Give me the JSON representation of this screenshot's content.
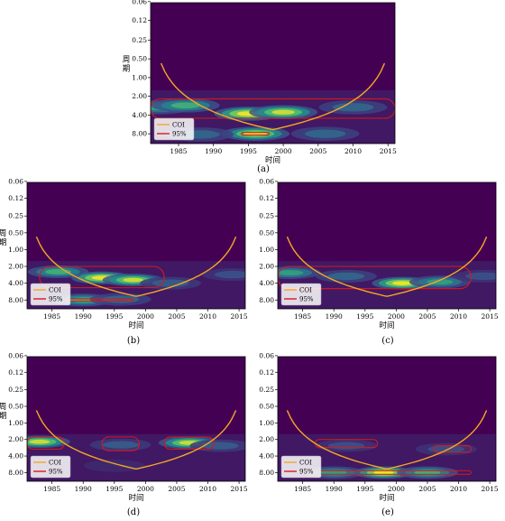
{
  "chart_data": [
    {
      "panel_label": "(a)",
      "type": "heatmap",
      "xlabel": "时间",
      "ylabel": "周期",
      "x_ticks": [
        "1985",
        "1990",
        "1995",
        "2000",
        "2005",
        "2010",
        "2015"
      ],
      "y_ticks": [
        "0.06",
        "0.12",
        "0.25",
        "0.50",
        "1.00",
        "2.00",
        "4.00",
        "8.00"
      ],
      "x_range": [
        1981,
        2016
      ],
      "y_scale": "log2",
      "y_range": [
        0.0625,
        11.5
      ],
      "y_inverted": true,
      "legend": {
        "position": "bottom-left",
        "entries": [
          {
            "label": "COI",
            "color": "#F5A623"
          },
          {
            "label": "95%",
            "color": "#D7191C"
          }
        ]
      },
      "power_hotspots": [
        {
          "year": 1982,
          "period": 3.0,
          "level": 0.7
        },
        {
          "year": 1986,
          "period": 2.8,
          "level": 0.8
        },
        {
          "year": 1995,
          "period": 3.8,
          "level": 1.0
        },
        {
          "year": 2000,
          "period": 3.6,
          "level": 0.9
        },
        {
          "year": 2010,
          "period": 3.0,
          "level": 0.6
        },
        {
          "year": 1996,
          "period": 8.0,
          "level": 0.9
        },
        {
          "year": 1988,
          "period": 8.2,
          "level": 0.6
        },
        {
          "year": 2006,
          "period": 8.0,
          "level": 0.6
        }
      ],
      "significant_regions": [
        {
          "x": [
            1981,
            2016
          ],
          "period": [
            2.2,
            4.5
          ]
        },
        {
          "x": [
            1994,
            1998
          ],
          "period": [
            7.6,
            8.4
          ]
        }
      ]
    },
    {
      "panel_label": "(b)",
      "type": "heatmap",
      "xlabel": "时间",
      "ylabel": "周期",
      "x_ticks": [
        "1985",
        "1990",
        "1995",
        "2000",
        "2005",
        "2010",
        "2015"
      ],
      "y_ticks": [
        "0.06",
        "0.12",
        "0.25",
        "0.50",
        "1.00",
        "2.00",
        "4.00",
        "8.00"
      ],
      "x_range": [
        1981,
        2016
      ],
      "y_scale": "log2",
      "y_range": [
        0.0625,
        11.5
      ],
      "y_inverted": true,
      "legend": {
        "position": "bottom-left",
        "entries": [
          {
            "label": "COI",
            "color": "#F5A623"
          },
          {
            "label": "95%",
            "color": "#D7191C"
          }
        ]
      },
      "power_hotspots": [
        {
          "year": 1986,
          "period": 2.5,
          "level": 0.8
        },
        {
          "year": 1993,
          "period": 3.2,
          "level": 1.0
        },
        {
          "year": 1998,
          "period": 3.5,
          "level": 0.9
        },
        {
          "year": 2004,
          "period": 4.0,
          "level": 0.5
        },
        {
          "year": 1990,
          "period": 8.0,
          "level": 0.8
        },
        {
          "year": 1996,
          "period": 7.8,
          "level": 0.6
        },
        {
          "year": 2014,
          "period": 2.8,
          "level": 0.4
        }
      ],
      "significant_regions": [
        {
          "x": [
            1983,
            2003
          ],
          "period": [
            2.0,
            4.8
          ]
        },
        {
          "x": [
            1987,
            1998
          ],
          "period": [
            7.6,
            8.4
          ]
        }
      ]
    },
    {
      "panel_label": "(c)",
      "type": "heatmap",
      "xlabel": "时间",
      "ylabel": "",
      "x_ticks": [
        "1985",
        "1990",
        "1995",
        "2000",
        "2005",
        "2010",
        "2015"
      ],
      "y_ticks": [
        "0.06",
        "0.12",
        "0.25",
        "0.50",
        "1.00",
        "2.00",
        "4.00",
        "8.00"
      ],
      "x_range": [
        1981,
        2016
      ],
      "y_scale": "log2",
      "y_range": [
        0.0625,
        11.5
      ],
      "y_inverted": true,
      "legend": {
        "position": "bottom-left",
        "entries": [
          {
            "label": "COI",
            "color": "#F5A623"
          },
          {
            "label": "95%",
            "color": "#D7191C"
          }
        ]
      },
      "power_hotspots": [
        {
          "year": 1983,
          "period": 2.6,
          "level": 0.7
        },
        {
          "year": 1992,
          "period": 3.0,
          "level": 0.6
        },
        {
          "year": 2001,
          "period": 4.0,
          "level": 1.0
        },
        {
          "year": 2007,
          "period": 3.8,
          "level": 0.7
        },
        {
          "year": 2014,
          "period": 3.0,
          "level": 0.4
        }
      ],
      "significant_regions": [
        {
          "x": [
            1981,
            2012
          ],
          "period": [
            2.0,
            5.0
          ]
        }
      ]
    },
    {
      "panel_label": "(d)",
      "type": "heatmap",
      "xlabel": "时间",
      "ylabel": "周期",
      "x_ticks": [
        "1985",
        "1990",
        "1995",
        "2000",
        "2005",
        "2010",
        "2015"
      ],
      "y_ticks": [
        "0.06",
        "0.12",
        "0.25",
        "0.50",
        "1.00",
        "2.00",
        "4.00",
        "8.00"
      ],
      "x_range": [
        1981,
        2016
      ],
      "y_scale": "log2",
      "y_range": [
        0.0625,
        11.5
      ],
      "y_inverted": true,
      "legend": {
        "position": "bottom-left",
        "entries": [
          {
            "label": "COI",
            "color": "#F5A623"
          },
          {
            "label": "95%",
            "color": "#D7191C"
          }
        ]
      },
      "power_hotspots": [
        {
          "year": 1983,
          "period": 2.2,
          "level": 0.9
        },
        {
          "year": 1996,
          "period": 2.5,
          "level": 0.5
        },
        {
          "year": 2007,
          "period": 2.3,
          "level": 0.9
        },
        {
          "year": 2012,
          "period": 2.6,
          "level": 0.5
        },
        {
          "year": 1995,
          "period": 6.0,
          "level": 0.3
        }
      ],
      "significant_regions": [
        {
          "x": [
            1981,
            1987
          ],
          "period": [
            1.8,
            3.0
          ]
        },
        {
          "x": [
            1993,
            1999
          ],
          "period": [
            1.8,
            3.2
          ]
        },
        {
          "x": [
            2003,
            2011
          ],
          "period": [
            1.8,
            3.0
          ]
        }
      ]
    },
    {
      "panel_label": "(e)",
      "type": "heatmap",
      "xlabel": "时间",
      "ylabel": "",
      "x_ticks": [
        "1985",
        "1990",
        "1995",
        "2000",
        "2005",
        "2010",
        "2015"
      ],
      "y_ticks": [
        "0.06",
        "0.12",
        "0.25",
        "0.50",
        "1.00",
        "2.00",
        "4.00",
        "8.00"
      ],
      "x_range": [
        1981,
        2016
      ],
      "y_scale": "log2",
      "y_range": [
        0.0625,
        11.5
      ],
      "y_inverted": true,
      "legend": {
        "position": "bottom-left",
        "entries": [
          {
            "label": "COI",
            "color": "#F5A623"
          },
          {
            "label": "95%",
            "color": "#D7191C"
          }
        ]
      },
      "power_hotspots": [
        {
          "year": 1990,
          "period": 8.0,
          "level": 0.7
        },
        {
          "year": 1998,
          "period": 8.0,
          "level": 1.0
        },
        {
          "year": 2005,
          "period": 8.0,
          "level": 0.8
        },
        {
          "year": 1992,
          "period": 2.6,
          "level": 0.4
        },
        {
          "year": 2008,
          "period": 3.0,
          "level": 0.4
        }
      ],
      "significant_regions": [
        {
          "x": [
            1985,
            2012
          ],
          "period": [
            7.4,
            8.6
          ]
        },
        {
          "x": [
            1987,
            1997
          ],
          "period": [
            2.0,
            2.8
          ]
        },
        {
          "x": [
            2006,
            2012
          ],
          "period": [
            2.6,
            3.4
          ]
        }
      ]
    }
  ]
}
